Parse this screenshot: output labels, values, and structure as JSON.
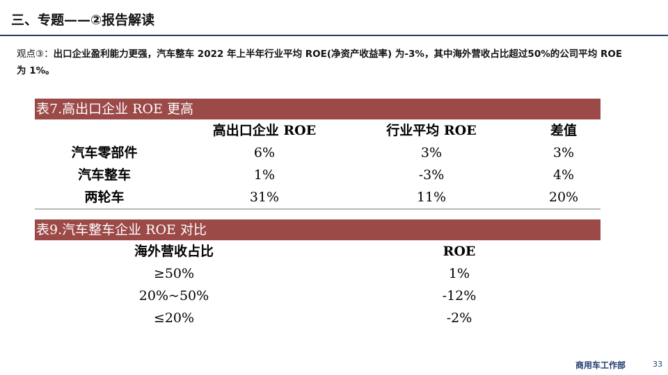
{
  "header": {
    "title": "三、专题——②报告解读"
  },
  "viewpoint": {
    "lead": "观点③：",
    "body": "出口企业盈利能力更强，汽车整车 2022 年上半年行业平均 ROE(净资产收益率) 为-3%，其中海外营收占比超过50%的公司平均 ROE 为 1%。"
  },
  "table7": {
    "title": "表7.高出口企业 ROE 更高",
    "columns": [
      "",
      "高出口企业 ROE",
      "行业平均 ROE",
      "差值"
    ],
    "rows": [
      [
        "汽车零部件",
        "6%",
        "3%",
        "3%"
      ],
      [
        "汽车整车",
        "1%",
        "-3%",
        "4%"
      ],
      [
        "两轮车",
        "31%",
        "11%",
        "20%"
      ]
    ]
  },
  "table9": {
    "title": "表9.汽车整车企业 ROE 对比",
    "columns": [
      "海外营收占比",
      "ROE"
    ],
    "rows": [
      [
        "≥50%",
        "1%"
      ],
      [
        "20%~50%",
        "-12%"
      ],
      [
        "≤20%",
        "-2%"
      ]
    ]
  },
  "footer": {
    "department": "商用车工作部",
    "page_number": "33"
  },
  "colors": {
    "table_header_bg": "#9b4a47",
    "title_rule": "#1f3a6e",
    "footer_text": "#1f3a6e"
  }
}
